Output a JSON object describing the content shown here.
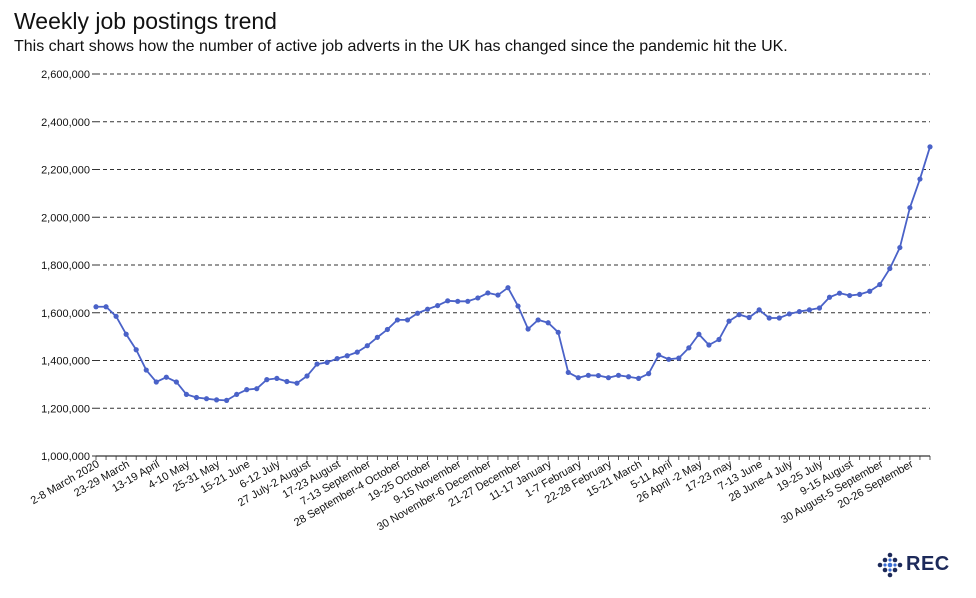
{
  "header": {
    "title": "Weekly job postings trend",
    "subtitle": "This chart shows how the number of active job adverts in the UK has changed since the pandemic hit the UK."
  },
  "logo": {
    "text": "REC",
    "icon": "dots-logo-icon",
    "color": "#1d2a5a",
    "accent": "#3b6fd6"
  },
  "chart_data": {
    "type": "line",
    "title": "Weekly job postings trend",
    "subtitle": "This chart shows how the number of active job adverts in the UK has changed since the pandemic hit the UK.",
    "xlabel": "",
    "ylabel": "",
    "ylim": [
      1000000,
      2600000
    ],
    "yticks": [
      1000000,
      1200000,
      1400000,
      1600000,
      1800000,
      2000000,
      2200000,
      2400000,
      2600000
    ],
    "ytick_labels": [
      "1,000,000",
      "1,200,000",
      "1,400,000",
      "1,600,000",
      "1,800,000",
      "2,000,000",
      "2,200,000",
      "2,400,000",
      "2,600,000"
    ],
    "grid": "horizontal dashed",
    "line_color": "#4a62c8",
    "x_tick_labels": [
      {
        "i": 0,
        "label": "2-8 March 2020"
      },
      {
        "i": 3,
        "label": "23-29 March"
      },
      {
        "i": 6,
        "label": "13-19 April"
      },
      {
        "i": 9,
        "label": "4-10 May"
      },
      {
        "i": 12,
        "label": "25-31 May"
      },
      {
        "i": 15,
        "label": "15-21 June"
      },
      {
        "i": 18,
        "label": "6-12 July"
      },
      {
        "i": 21,
        "label": "27 July-2 August"
      },
      {
        "i": 24,
        "label": "17-23 August"
      },
      {
        "i": 27,
        "label": "7-13 September"
      },
      {
        "i": 30,
        "label": "28 September-4 October"
      },
      {
        "i": 33,
        "label": "19-25 October"
      },
      {
        "i": 36,
        "label": "9-15 November"
      },
      {
        "i": 39,
        "label": "30 November-6 December"
      },
      {
        "i": 42,
        "label": "21-27 December"
      },
      {
        "i": 45,
        "label": "11-17 January"
      },
      {
        "i": 48,
        "label": "1-7 February"
      },
      {
        "i": 51,
        "label": "22-28 February"
      },
      {
        "i": 54,
        "label": "15-21 March"
      },
      {
        "i": 57,
        "label": "5-11 April"
      },
      {
        "i": 60,
        "label": "26 April -2 May"
      },
      {
        "i": 63,
        "label": "17-23 may"
      },
      {
        "i": 66,
        "label": "7-13 June"
      },
      {
        "i": 69,
        "label": "28 June-4 July"
      },
      {
        "i": 72,
        "label": "19-25 July"
      },
      {
        "i": 75,
        "label": "9-15 August"
      },
      {
        "i": 78,
        "label": "30 August-5 September"
      },
      {
        "i": 81,
        "label": "20-26 September"
      }
    ],
    "series": [
      {
        "values": [
          1625000,
          1625000,
          1585000,
          1510000,
          1445000,
          1360000,
          1310000,
          1330000,
          1310000,
          1258000,
          1245000,
          1240000,
          1235000,
          1233000,
          1258000,
          1278000,
          1282000,
          1320000,
          1325000,
          1312000,
          1305000,
          1335000,
          1385000,
          1392000,
          1408000,
          1420000,
          1435000,
          1462000,
          1497000,
          1530000,
          1570000,
          1570000,
          1598000,
          1615000,
          1630000,
          1650000,
          1648000,
          1648000,
          1662000,
          1683000,
          1674000,
          1705000,
          1628000,
          1532000,
          1570000,
          1558000,
          1518000,
          1350000,
          1328000,
          1338000,
          1337000,
          1328000,
          1338000,
          1332000,
          1325000,
          1345000,
          1423000,
          1405000,
          1410000,
          1453000,
          1510000,
          1465000,
          1488000,
          1565000,
          1592000,
          1580000,
          1612000,
          1578000,
          1578000,
          1595000,
          1605000,
          1612000,
          1620000,
          1665000,
          1682000,
          1672000,
          1677000,
          1690000,
          1718000,
          1785000,
          1873000,
          2040000,
          2160000,
          2295000
        ]
      }
    ]
  }
}
